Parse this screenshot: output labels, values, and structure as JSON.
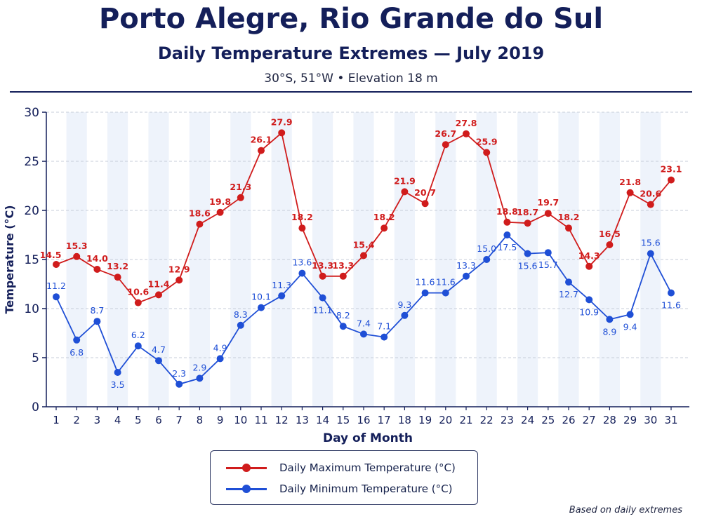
{
  "header": {
    "title": "Porto Alegre, Rio Grande do Sul",
    "subtitle": "Daily Temperature Extremes — July 2019",
    "caption": "30°S, 51°W • Elevation 18 m"
  },
  "note": "Based on daily extremes",
  "colors": {
    "max": "#d01c1c",
    "min": "#1f4fd6",
    "axis": "#141f5a"
  },
  "chart_data": {
    "type": "line",
    "title": "Daily Temperature Extremes — July 2019",
    "xlabel": "Day of Month",
    "ylabel": "Temperature (°C)",
    "ylim": [
      0,
      30
    ],
    "yticks": [
      0,
      5,
      10,
      15,
      20,
      25,
      30
    ],
    "grid": true,
    "legend_position": "bottom-center",
    "x": [
      1,
      2,
      3,
      4,
      5,
      6,
      7,
      8,
      9,
      10,
      11,
      12,
      13,
      14,
      15,
      16,
      17,
      18,
      19,
      20,
      21,
      22,
      23,
      24,
      25,
      26,
      27,
      28,
      29,
      30,
      31
    ],
    "series": [
      {
        "name": "Daily Maximum Temperature (°C)",
        "color": "#d01c1c",
        "values": [
          14.5,
          15.3,
          14.0,
          13.2,
          10.6,
          11.4,
          12.9,
          18.6,
          19.8,
          21.3,
          26.1,
          27.9,
          18.2,
          13.3,
          13.3,
          15.4,
          18.2,
          21.9,
          20.7,
          26.7,
          27.8,
          25.9,
          18.8,
          18.7,
          19.7,
          18.2,
          14.3,
          16.5,
          21.8,
          20.6,
          23.1
        ]
      },
      {
        "name": "Daily Minimum Temperature (°C)",
        "color": "#1f4fd6",
        "values": [
          11.2,
          6.8,
          8.7,
          3.5,
          6.2,
          4.7,
          2.3,
          2.9,
          4.9,
          8.3,
          10.1,
          11.3,
          13.6,
          11.1,
          8.2,
          7.4,
          7.1,
          9.3,
          11.6,
          11.6,
          13.3,
          15.0,
          17.5,
          15.6,
          15.7,
          12.7,
          10.9,
          8.9,
          9.4,
          15.6,
          11.6
        ]
      }
    ]
  }
}
